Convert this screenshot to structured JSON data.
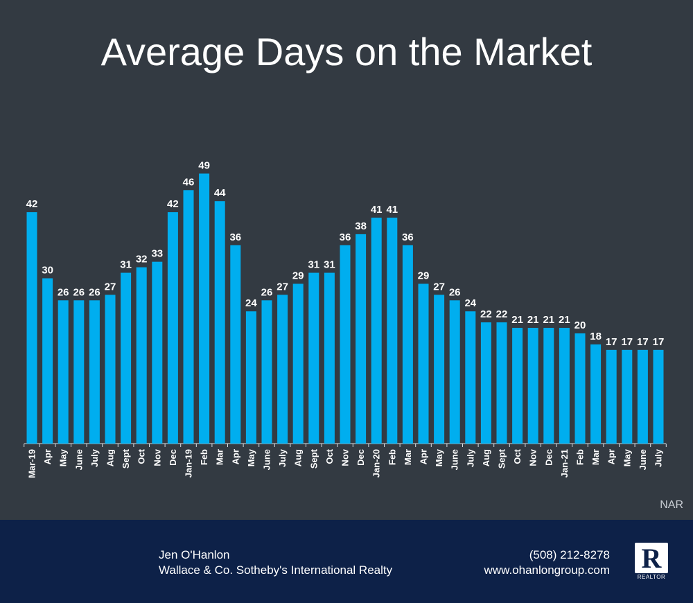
{
  "title": "Average Days on the Market",
  "source": "NAR",
  "footer": {
    "agent_name": "Jen O'Hanlon",
    "brokerage": "Wallace & Co. Sotheby's International Realty",
    "phone": "(508) 212-8278",
    "website": "www.ohanlongroup.com",
    "logo_text": "REALTOR"
  },
  "colors": {
    "background": "#333a42",
    "bar": "#00aeef",
    "footer": "#0d2148",
    "text": "#ffffff"
  },
  "chart_data": {
    "type": "bar",
    "title": "Average Days on the Market",
    "xlabel": "",
    "ylabel": "",
    "ylim": [
      0,
      55
    ],
    "grid": false,
    "categories": [
      "Mar-19",
      "Apr",
      "May",
      "June",
      "July",
      "Aug",
      "Sept",
      "Oct",
      "Nov",
      "Dec",
      "Jan-19",
      "Feb",
      "Mar",
      "Apr",
      "May",
      "June",
      "July",
      "Aug",
      "Sept",
      "Oct",
      "Nov",
      "Dec",
      "Jan-20",
      "Feb",
      "Mar",
      "Apr",
      "May",
      "June",
      "July",
      "Aug",
      "Sept",
      "Oct",
      "Nov",
      "Dec",
      "Jan-21",
      "Feb",
      "Mar",
      "Apr",
      "May",
      "June",
      "July"
    ],
    "values": [
      42,
      30,
      26,
      26,
      26,
      27,
      31,
      32,
      33,
      42,
      46,
      49,
      44,
      36,
      24,
      26,
      27,
      29,
      31,
      31,
      36,
      38,
      41,
      41,
      36,
      29,
      27,
      26,
      24,
      22,
      22,
      21,
      21,
      21,
      21,
      20,
      18,
      17,
      17,
      17,
      17
    ]
  }
}
